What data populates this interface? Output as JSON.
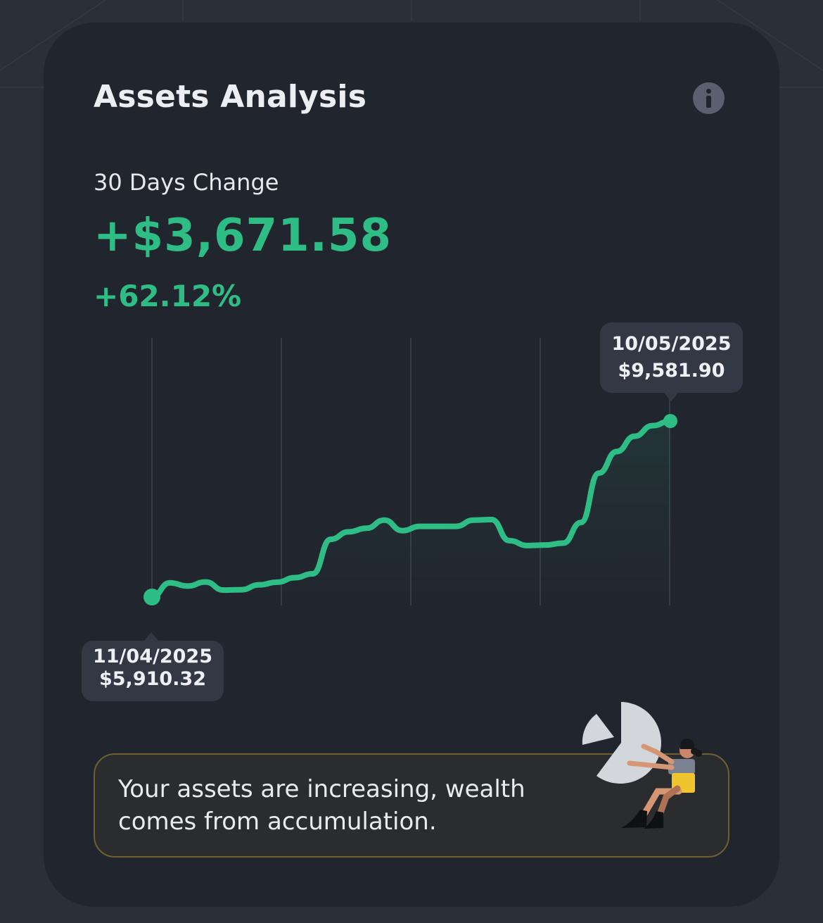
{
  "header": {
    "title": "Assets Analysis",
    "info_icon": "info-icon"
  },
  "summary": {
    "period_label": "30 Days Change",
    "change_amount": "+$3,671.58",
    "change_percent": "+62.12%"
  },
  "colors": {
    "positive": "#2ebd85",
    "card_background": "#21252e",
    "tooltip_background": "#333844",
    "message_border": "#6e6033"
  },
  "chart_data": {
    "type": "line",
    "x": [
      "11/04/2025",
      "",
      "",
      "",
      "",
      "",
      "",
      "",
      "",
      "",
      "",
      "",
      "",
      "",
      "",
      "",
      "",
      "",
      "",
      "",
      "",
      "",
      "",
      "",
      "",
      "",
      "",
      "",
      "",
      "10/05/2025"
    ],
    "values": [
      5910.32,
      6205,
      6140,
      6225,
      6055,
      6063,
      6165,
      6220,
      6315,
      6395,
      7115,
      7270,
      7345,
      7515,
      7295,
      7385,
      7385,
      7385,
      7515,
      7525,
      7085,
      6985,
      6995,
      7035,
      7465,
      8495,
      8945,
      9265,
      9485,
      9581.9
    ],
    "start_tooltip": {
      "date": "11/04/2025",
      "value": "$5,910.32"
    },
    "end_tooltip": {
      "date": "10/05/2025",
      "value": "$9,581.90"
    },
    "grid": "vertical",
    "ylim": [
      5800,
      9700
    ]
  },
  "message": {
    "text": "Your assets are increasing, wealth comes from accumulation.",
    "illustration": "person-holding-pie-chart-illustration"
  }
}
